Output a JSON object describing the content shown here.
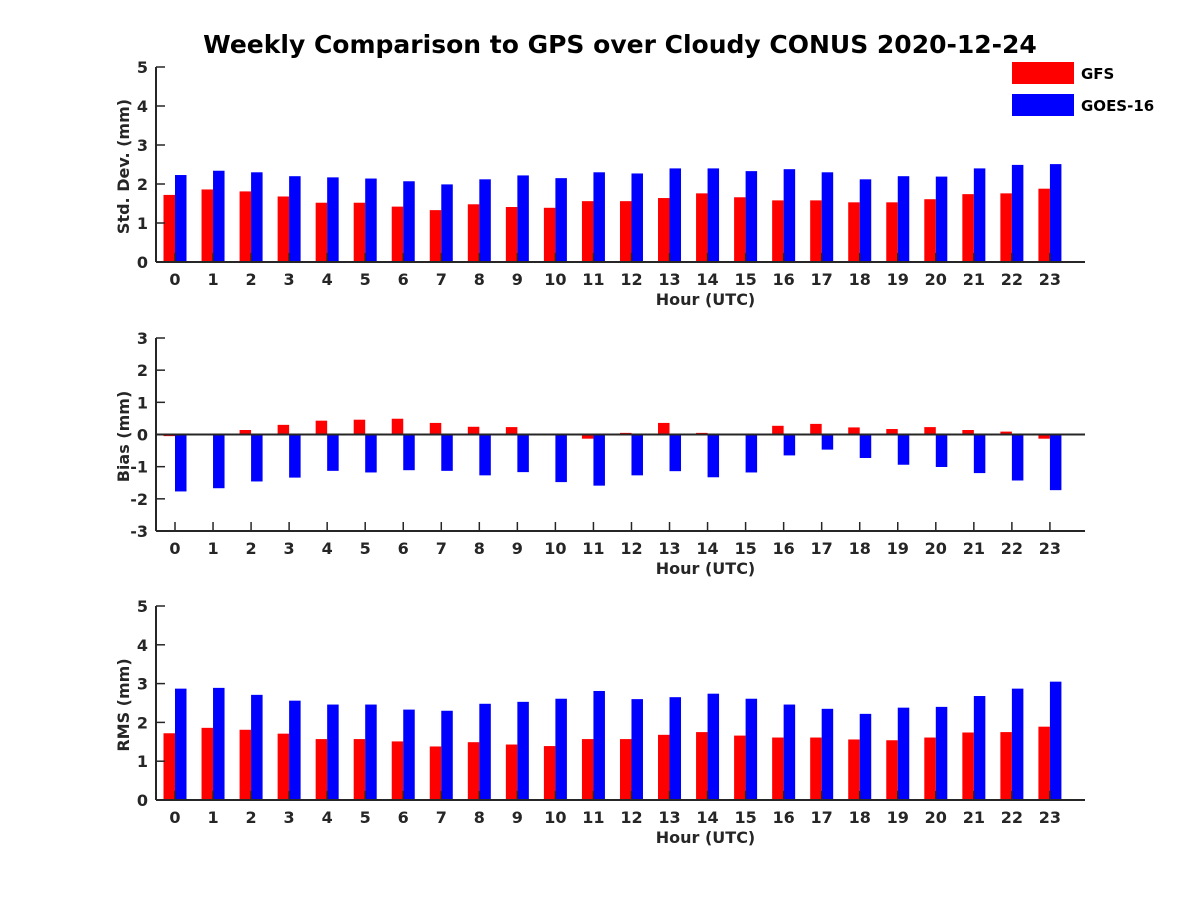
{
  "title": "Weekly Comparison to GPS over Cloudy CONUS 2020-12-24",
  "legend": [
    {
      "name": "GFS",
      "color": "#ff0000"
    },
    {
      "name": "GOES-16",
      "color": "#0000ff"
    }
  ],
  "chart_data": [
    {
      "type": "bar",
      "categories": [
        "0",
        "1",
        "2",
        "3",
        "4",
        "5",
        "6",
        "7",
        "8",
        "9",
        "10",
        "11",
        "12",
        "13",
        "14",
        "15",
        "16",
        "17",
        "18",
        "19",
        "20",
        "21",
        "22",
        "23"
      ],
      "xlabel": "Hour (UTC)",
      "ylabel": "Std. Dev. (mm)",
      "ylim": [
        0,
        5
      ],
      "yticks": [
        "0",
        "1",
        "2",
        "3",
        "4",
        "5"
      ],
      "series": [
        {
          "name": "GFS",
          "color": "#ff0000",
          "values": [
            1.72,
            1.86,
            1.81,
            1.68,
            1.52,
            1.52,
            1.42,
            1.33,
            1.48,
            1.41,
            1.39,
            1.56,
            1.56,
            1.64,
            1.76,
            1.66,
            1.58,
            1.58,
            1.53,
            1.53,
            1.61,
            1.74,
            1.76,
            1.88
          ]
        },
        {
          "name": "GOES-16",
          "color": "#0000ff",
          "values": [
            2.23,
            2.34,
            2.3,
            2.2,
            2.17,
            2.14,
            2.07,
            1.99,
            2.12,
            2.22,
            2.15,
            2.3,
            2.27,
            2.4,
            2.4,
            2.33,
            2.38,
            2.3,
            2.12,
            2.2,
            2.19,
            2.4,
            2.49,
            2.51
          ]
        }
      ]
    },
    {
      "type": "bar",
      "categories": [
        "0",
        "1",
        "2",
        "3",
        "4",
        "5",
        "6",
        "7",
        "8",
        "9",
        "10",
        "11",
        "12",
        "13",
        "14",
        "15",
        "16",
        "17",
        "18",
        "19",
        "20",
        "21",
        "22",
        "23"
      ],
      "xlabel": "Hour (UTC)",
      "ylabel": "Bias (mm)",
      "ylim": [
        -3,
        3
      ],
      "yticks": [
        "-3",
        "-2",
        "-1",
        "0",
        "1",
        "2",
        "3"
      ],
      "series": [
        {
          "name": "GFS",
          "color": "#ff0000",
          "values": [
            -0.05,
            -0.02,
            0.14,
            0.3,
            0.43,
            0.46,
            0.49,
            0.36,
            0.24,
            0.23,
            0.0,
            -0.13,
            0.05,
            0.36,
            0.05,
            0.0,
            0.27,
            0.33,
            0.22,
            0.17,
            0.23,
            0.14,
            0.09,
            -0.13
          ]
        },
        {
          "name": "GOES-16",
          "color": "#0000ff",
          "values": [
            -1.77,
            -1.67,
            -1.46,
            -1.34,
            -1.13,
            -1.18,
            -1.11,
            -1.13,
            -1.27,
            -1.17,
            -1.48,
            -1.59,
            -1.27,
            -1.14,
            -1.33,
            -1.18,
            -0.65,
            -0.47,
            -0.73,
            -0.94,
            -1.01,
            -1.2,
            -1.43,
            -1.73
          ]
        }
      ]
    },
    {
      "type": "bar",
      "categories": [
        "0",
        "1",
        "2",
        "3",
        "4",
        "5",
        "6",
        "7",
        "8",
        "9",
        "10",
        "11",
        "12",
        "13",
        "14",
        "15",
        "16",
        "17",
        "18",
        "19",
        "20",
        "21",
        "22",
        "23"
      ],
      "xlabel": "Hour (UTC)",
      "ylabel": "RMS (mm)",
      "ylim": [
        0,
        5
      ],
      "yticks": [
        "0",
        "1",
        "2",
        "3",
        "4",
        "5"
      ],
      "series": [
        {
          "name": "GFS",
          "color": "#ff0000",
          "values": [
            1.72,
            1.86,
            1.81,
            1.71,
            1.57,
            1.57,
            1.51,
            1.38,
            1.49,
            1.43,
            1.39,
            1.57,
            1.57,
            1.68,
            1.75,
            1.66,
            1.61,
            1.61,
            1.56,
            1.54,
            1.61,
            1.74,
            1.75,
            1.89
          ]
        },
        {
          "name": "GOES-16",
          "color": "#0000ff",
          "values": [
            2.87,
            2.89,
            2.71,
            2.56,
            2.46,
            2.46,
            2.33,
            2.3,
            2.48,
            2.53,
            2.61,
            2.81,
            2.6,
            2.65,
            2.74,
            2.61,
            2.46,
            2.35,
            2.22,
            2.38,
            2.4,
            2.68,
            2.87,
            3.05
          ]
        }
      ]
    }
  ]
}
